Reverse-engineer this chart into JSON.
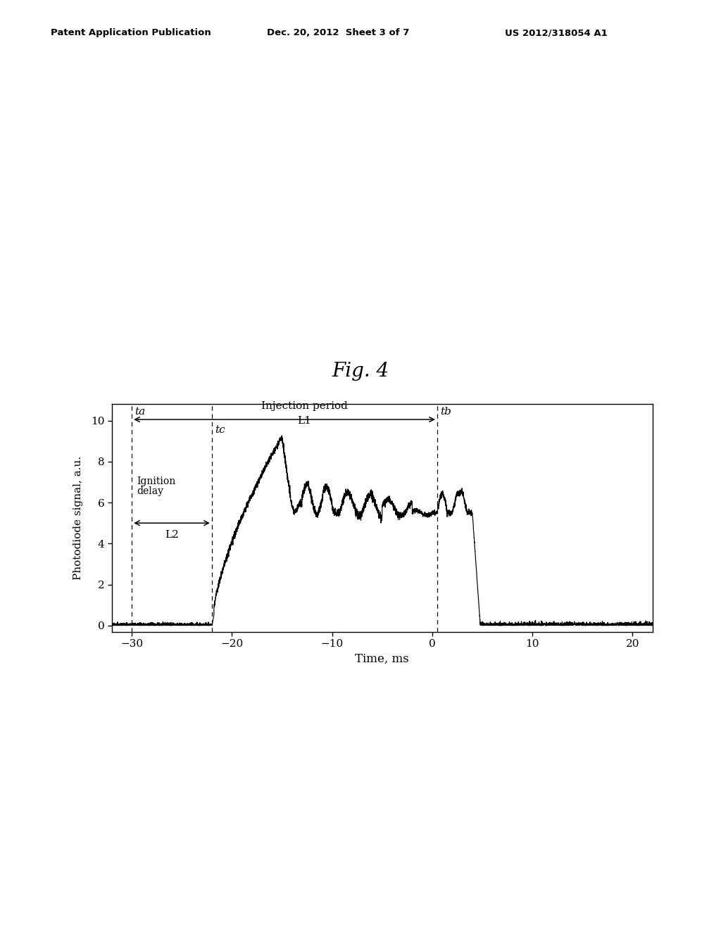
{
  "title": "Fig. 4",
  "xlabel": "Time, ms",
  "ylabel": "Photodiode signal, a.u.",
  "xlim": [
    -32,
    22
  ],
  "ylim": [
    -0.3,
    10.8
  ],
  "xticks": [
    -30,
    -20,
    -10,
    0,
    10,
    20
  ],
  "yticks": [
    0,
    2,
    4,
    6,
    8,
    10
  ],
  "ta": -30.0,
  "tb": 0.5,
  "tc": -22.0,
  "background": "#ffffff",
  "line_color": "#000000",
  "header_left": "Patent Application Publication",
  "header_mid": "Dec. 20, 2012  Sheet 3 of 7",
  "header_right": "US 2012/318054 A1"
}
